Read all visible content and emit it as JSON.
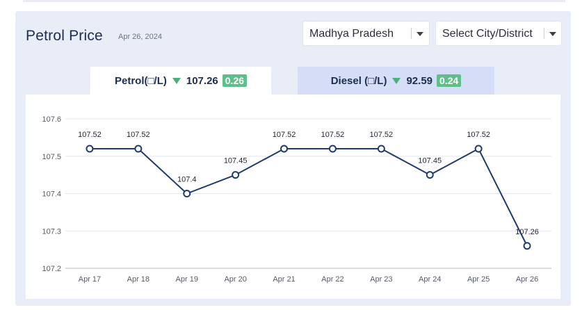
{
  "header": {
    "title": "Petrol Price",
    "date": "Apr 26, 2024"
  },
  "filters": {
    "state": "Madhya Pradesh",
    "city": "Select City/District"
  },
  "tabs": {
    "petrol": {
      "label": "Petrol(□/L)",
      "price": "107.26",
      "change": "0.26"
    },
    "diesel": {
      "label": "Diesel (□/L)",
      "price": "92.59",
      "change": "0.24"
    }
  },
  "colors": {
    "line": "#1e3a6e",
    "down_arrow": "#4caf7d",
    "change_badge": "#5fbf8b"
  },
  "chart_data": {
    "type": "line",
    "title": "",
    "xlabel": "",
    "ylabel": "",
    "categories": [
      "Apr 17",
      "Apr 18",
      "Apr 19",
      "Apr 20",
      "Apr 21",
      "Apr 22",
      "Apr 23",
      "Apr 24",
      "Apr 25",
      "Apr 26"
    ],
    "values": [
      107.52,
      107.52,
      107.4,
      107.45,
      107.52,
      107.52,
      107.52,
      107.45,
      107.52,
      107.26
    ],
    "data_labels": [
      "107.52",
      "107.52",
      "107.4",
      "107.45",
      "107.52",
      "107.52",
      "107.52",
      "107.45",
      "107.52",
      "107.26"
    ],
    "ylim": [
      107.2,
      107.6
    ],
    "yticks": [
      "107.2",
      "107.3",
      "107.4",
      "107.5",
      "107.6"
    ],
    "grid": true,
    "legend": "none"
  }
}
